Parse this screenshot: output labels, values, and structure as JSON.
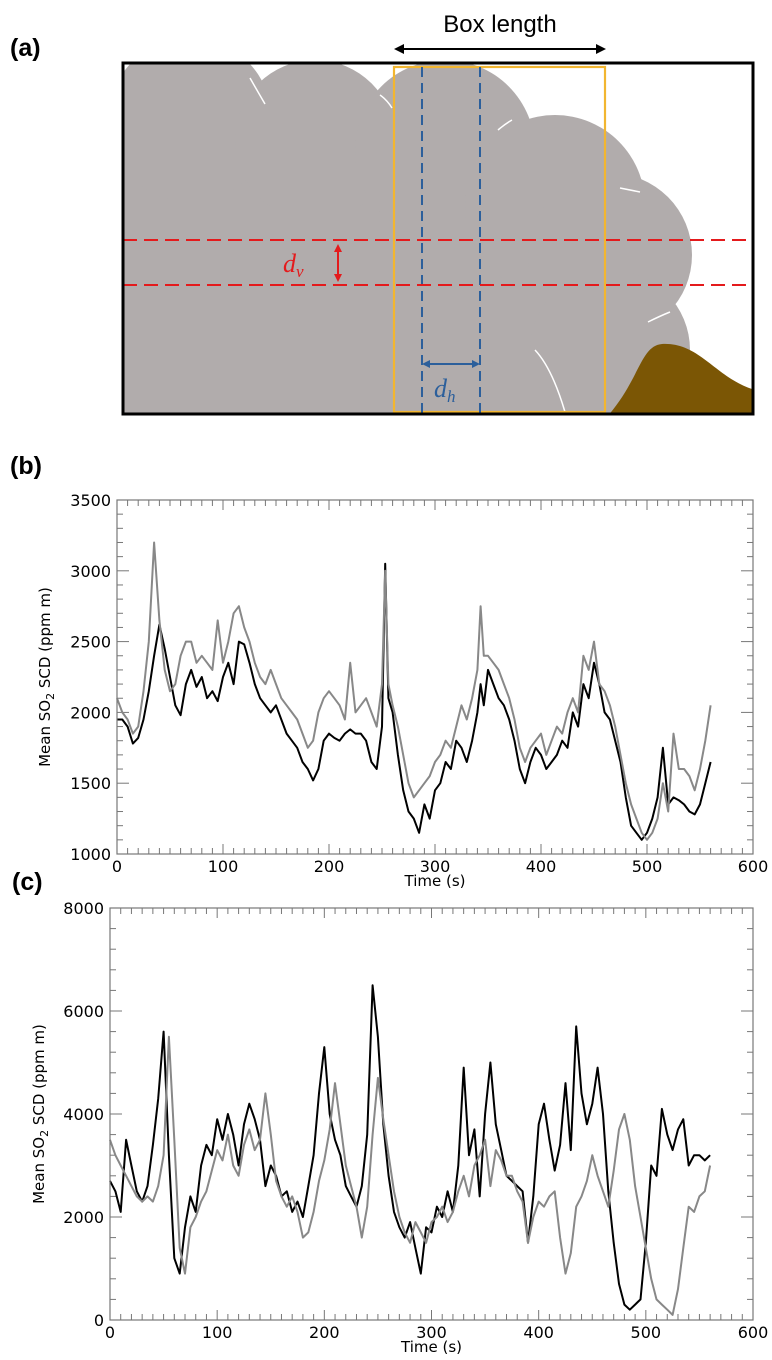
{
  "panels": {
    "a": {
      "label": "(a)",
      "box_length_label": "Box length",
      "dv_symbol": "d",
      "dv_subscript": "v",
      "dh_symbol": "d",
      "dh_subscript": "h",
      "colors": {
        "plume": "#b1acac",
        "ground": "#7b5605",
        "box": "#f2b630",
        "vertical_lines": "#2c5f9b",
        "horizontal_lines": "#e41a1c",
        "frame": "#000000"
      }
    },
    "b": {
      "label": "(b)"
    },
    "c": {
      "label": "(c)"
    }
  },
  "chart_data": [
    {
      "type": "line",
      "panel": "b",
      "xlabel": "Time (s)",
      "ylabel": "Mean SO2 SCD (ppm m)",
      "ylabel_parts": [
        "Mean SO",
        "2",
        " SCD (ppm m)"
      ],
      "xlim": [
        0,
        600
      ],
      "ylim": [
        1000,
        3500
      ],
      "xticks": [
        0,
        100,
        200,
        300,
        400,
        500,
        600
      ],
      "yticks": [
        1000,
        1500,
        2000,
        2500,
        3000,
        3500
      ],
      "grid": false,
      "series": [
        {
          "color": "#000000",
          "x": [
            0,
            5,
            10,
            15,
            20,
            25,
            30,
            35,
            40,
            45,
            50,
            55,
            60,
            65,
            70,
            75,
            80,
            85,
            90,
            95,
            100,
            105,
            110,
            115,
            120,
            125,
            130,
            135,
            140,
            145,
            150,
            155,
            160,
            165,
            170,
            175,
            180,
            185,
            190,
            195,
            200,
            205,
            210,
            215,
            220,
            225,
            230,
            235,
            240,
            245,
            250,
            253,
            256,
            260,
            265,
            270,
            275,
            280,
            285,
            290,
            295,
            300,
            305,
            310,
            315,
            320,
            325,
            330,
            335,
            340,
            343,
            346,
            350,
            355,
            360,
            365,
            370,
            375,
            380,
            385,
            390,
            395,
            400,
            405,
            410,
            415,
            420,
            425,
            430,
            435,
            440,
            445,
            450,
            455,
            460,
            465,
            470,
            475,
            480,
            485,
            490,
            495,
            500,
            505,
            510,
            515,
            520,
            525,
            530,
            535,
            540,
            545,
            550,
            555,
            560
          ],
          "y": [
            1950,
            1950,
            1900,
            1780,
            1820,
            1950,
            2150,
            2400,
            2620,
            2450,
            2250,
            2050,
            1980,
            2200,
            2300,
            2180,
            2250,
            2100,
            2150,
            2080,
            2250,
            2350,
            2200,
            2500,
            2480,
            2350,
            2200,
            2100,
            2050,
            2000,
            2050,
            1950,
            1850,
            1800,
            1750,
            1650,
            1600,
            1520,
            1600,
            1800,
            1850,
            1820,
            1800,
            1850,
            1880,
            1850,
            1850,
            1800,
            1650,
            1600,
            1900,
            3050,
            2100,
            2000,
            1700,
            1450,
            1300,
            1250,
            1150,
            1350,
            1250,
            1450,
            1500,
            1650,
            1600,
            1800,
            1750,
            1650,
            1800,
            2000,
            2200,
            2050,
            2300,
            2200,
            2100,
            2050,
            1950,
            1800,
            1600,
            1500,
            1650,
            1750,
            1700,
            1600,
            1650,
            1700,
            1800,
            1750,
            2000,
            1900,
            2200,
            2100,
            2350,
            2200,
            2000,
            1950,
            1800,
            1650,
            1400,
            1200,
            1150,
            1100,
            1150,
            1250,
            1400,
            1750,
            1350,
            1400,
            1380,
            1350,
            1300,
            1280,
            1350,
            1500,
            1650
          ]
        },
        {
          "color": "#888888",
          "x": [
            0,
            5,
            10,
            15,
            20,
            25,
            30,
            35,
            40,
            45,
            50,
            55,
            60,
            65,
            70,
            75,
            80,
            85,
            90,
            95,
            100,
            105,
            110,
            115,
            120,
            125,
            130,
            135,
            140,
            145,
            150,
            155,
            160,
            165,
            170,
            175,
            180,
            185,
            190,
            195,
            200,
            205,
            210,
            215,
            220,
            225,
            230,
            235,
            240,
            245,
            250,
            253,
            256,
            260,
            265,
            270,
            275,
            280,
            285,
            290,
            295,
            300,
            305,
            310,
            315,
            320,
            325,
            330,
            335,
            340,
            343,
            346,
            350,
            355,
            360,
            365,
            370,
            375,
            380,
            385,
            390,
            395,
            400,
            405,
            410,
            415,
            420,
            425,
            430,
            435,
            440,
            445,
            450,
            455,
            460,
            465,
            470,
            475,
            480,
            485,
            490,
            495,
            500,
            505,
            510,
            515,
            520,
            525,
            530,
            535,
            540,
            545,
            550,
            555,
            560
          ],
          "y": [
            2100,
            2000,
            1950,
            1850,
            1900,
            2150,
            2500,
            3200,
            2650,
            2300,
            2150,
            2200,
            2400,
            2500,
            2500,
            2350,
            2400,
            2350,
            2300,
            2650,
            2350,
            2500,
            2700,
            2750,
            2600,
            2500,
            2350,
            2250,
            2200,
            2300,
            2200,
            2100,
            2050,
            2000,
            1950,
            1850,
            1750,
            1800,
            2000,
            2100,
            2150,
            2100,
            2050,
            1950,
            2350,
            2000,
            2050,
            2100,
            2000,
            1900,
            2200,
            3000,
            2200,
            2050,
            1900,
            1700,
            1500,
            1400,
            1450,
            1500,
            1550,
            1650,
            1700,
            1800,
            1750,
            1900,
            2050,
            1950,
            2100,
            2300,
            2750,
            2400,
            2400,
            2350,
            2300,
            2200,
            2100,
            1950,
            1750,
            1650,
            1750,
            1800,
            1850,
            1700,
            1800,
            1900,
            1850,
            2000,
            2100,
            2000,
            2400,
            2300,
            2500,
            2200,
            2150,
            2050,
            1900,
            1700,
            1500,
            1350,
            1250,
            1150,
            1100,
            1150,
            1250,
            1500,
            1300,
            1850,
            1600,
            1600,
            1550,
            1450,
            1600,
            1800,
            2050
          ]
        }
      ]
    },
    {
      "type": "line",
      "panel": "c",
      "xlabel": "Time (s)",
      "ylabel": "Mean SO2 SCD (ppm m)",
      "ylabel_parts": [
        "Mean SO",
        "2",
        " SCD (ppm m)"
      ],
      "xlim": [
        0,
        600
      ],
      "ylim": [
        0,
        8000
      ],
      "xticks": [
        0,
        100,
        200,
        300,
        400,
        500,
        600
      ],
      "yticks": [
        0,
        2000,
        4000,
        6000,
        8000
      ],
      "grid": false,
      "series": [
        {
          "color": "#000000",
          "x": [
            0,
            5,
            10,
            15,
            20,
            25,
            30,
            35,
            40,
            45,
            50,
            55,
            60,
            65,
            70,
            75,
            80,
            85,
            90,
            95,
            100,
            105,
            110,
            115,
            120,
            125,
            130,
            135,
            140,
            145,
            150,
            155,
            160,
            165,
            170,
            175,
            180,
            185,
            190,
            195,
            200,
            205,
            210,
            215,
            220,
            225,
            230,
            235,
            240,
            245,
            250,
            255,
            260,
            265,
            270,
            275,
            280,
            285,
            290,
            295,
            300,
            305,
            310,
            315,
            320,
            325,
            330,
            335,
            340,
            345,
            350,
            355,
            360,
            365,
            370,
            375,
            380,
            385,
            390,
            395,
            400,
            405,
            410,
            415,
            420,
            425,
            430,
            435,
            440,
            445,
            450,
            455,
            460,
            465,
            470,
            475,
            480,
            485,
            490,
            495,
            500,
            505,
            510,
            515,
            520,
            525,
            530,
            535,
            540,
            545,
            550,
            555,
            560
          ],
          "y": [
            2700,
            2500,
            2100,
            3500,
            3000,
            2500,
            2300,
            2600,
            3400,
            4300,
            5600,
            3200,
            1200,
            900,
            1800,
            2400,
            2100,
            3000,
            3400,
            3200,
            3900,
            3500,
            4000,
            3600,
            3000,
            3800,
            4200,
            3900,
            3500,
            2600,
            3000,
            2800,
            2400,
            2500,
            2100,
            2300,
            2000,
            2600,
            3200,
            4400,
            5300,
            4000,
            3500,
            3200,
            2600,
            2400,
            2200,
            2600,
            3600,
            6500,
            5500,
            3800,
            2800,
            2100,
            1800,
            1600,
            1900,
            1400,
            900,
            1800,
            1700,
            2200,
            2000,
            2500,
            2100,
            3000,
            4900,
            3200,
            3700,
            2400,
            4000,
            5000,
            3800,
            3300,
            2800,
            2700,
            2600,
            2500,
            1500,
            2400,
            3800,
            4200,
            3500,
            2900,
            3400,
            4600,
            3300,
            5700,
            4400,
            3800,
            4200,
            4900,
            4000,
            2500,
            1500,
            700,
            300,
            200,
            300,
            400,
            1500,
            3000,
            2800,
            4100,
            3600,
            3300,
            3700,
            3900,
            3000,
            3200,
            3200,
            3100,
            3200
          ]
        },
        {
          "color": "#888888",
          "x": [
            0,
            5,
            10,
            15,
            20,
            25,
            30,
            35,
            40,
            45,
            50,
            55,
            60,
            65,
            70,
            75,
            80,
            85,
            90,
            95,
            100,
            105,
            110,
            115,
            120,
            125,
            130,
            135,
            140,
            145,
            150,
            155,
            160,
            165,
            170,
            175,
            180,
            185,
            190,
            195,
            200,
            205,
            210,
            215,
            220,
            225,
            230,
            235,
            240,
            245,
            250,
            255,
            260,
            265,
            270,
            275,
            280,
            285,
            290,
            295,
            300,
            305,
            310,
            315,
            320,
            325,
            330,
            335,
            340,
            345,
            350,
            355,
            360,
            365,
            370,
            375,
            380,
            385,
            390,
            395,
            400,
            405,
            410,
            415,
            420,
            425,
            430,
            435,
            440,
            445,
            450,
            455,
            460,
            465,
            470,
            475,
            480,
            485,
            490,
            495,
            500,
            505,
            510,
            515,
            520,
            525,
            530,
            535,
            540,
            545,
            550,
            555,
            560
          ],
          "y": [
            3500,
            3200,
            3000,
            2800,
            2600,
            2400,
            2300,
            2400,
            2300,
            2600,
            3200,
            5500,
            3500,
            1400,
            900,
            1800,
            2000,
            2300,
            2500,
            2900,
            3300,
            3100,
            3600,
            3000,
            2800,
            3400,
            3700,
            3300,
            3500,
            4400,
            3600,
            2700,
            2400,
            2200,
            2400,
            2100,
            1600,
            1700,
            2100,
            2700,
            3100,
            3700,
            4600,
            3800,
            3000,
            2600,
            2200,
            1600,
            2200,
            3600,
            4700,
            3900,
            3200,
            2500,
            2000,
            1700,
            1500,
            1900,
            1700,
            1500,
            1900,
            2000,
            2200,
            1900,
            2100,
            2500,
            2800,
            2400,
            3000,
            3200,
            3500,
            2600,
            3300,
            3100,
            2800,
            2800,
            2500,
            2300,
            1500,
            2000,
            2300,
            2200,
            2400,
            2500,
            1600,
            900,
            1300,
            2200,
            2400,
            2700,
            3200,
            2800,
            2500,
            2200,
            2900,
            3700,
            4000,
            3500,
            2600,
            2000,
            1400,
            800,
            400,
            300,
            200,
            100,
            600,
            1400,
            2200,
            2100,
            2400,
            2500,
            3000
          ]
        }
      ]
    }
  ]
}
